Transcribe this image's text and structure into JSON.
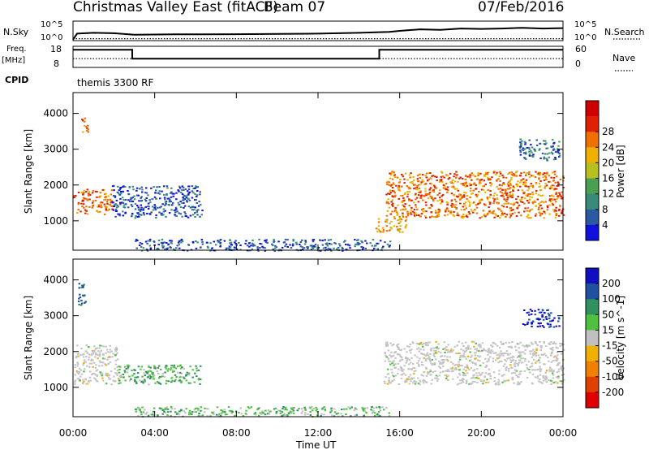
{
  "header": {
    "station": "Christmas Valley East (fitACF)",
    "beam": "Beam 07",
    "date": "07/Feb/2016"
  },
  "summary_labels": {
    "nsky": "N.Sky",
    "nsearch": "N.Search",
    "freq": "Freq.",
    "freq_unit": "[MHz]",
    "nave": "Nave",
    "cpid_label": "CPID",
    "cpid_value": "themis 3300 RF",
    "noise_ticks_left": [
      "10^5",
      "10^0"
    ],
    "noise_ticks_right": [
      "10^5",
      "10^0"
    ],
    "freq_ticks": [
      "18",
      "8"
    ],
    "nave_ticks": [
      "60",
      "0"
    ]
  },
  "colors": {
    "power": [
      "#1010e0",
      "#2a5aa0",
      "#3a8a7a",
      "#4aa050",
      "#b8c020",
      "#f0b000",
      "#f07000",
      "#e02000",
      "#d00000"
    ],
    "velocity": [
      "#1010c0",
      "#2050a0",
      "#309060",
      "#50c040",
      "#c0c0c0",
      "#f0b000",
      "#f08000",
      "#e04000",
      "#e00000"
    ],
    "velocity_ground": "#c4c4c4"
  },
  "chart_data": [
    {
      "type": "line",
      "panel": "noise",
      "x_range": [
        0,
        24
      ],
      "series": [
        {
          "name": "N.Sky",
          "x": [
            0,
            0.2,
            1,
            2,
            3,
            5,
            8,
            10,
            12,
            14,
            15.5,
            16,
            17,
            18,
            19,
            20,
            21,
            22,
            23,
            24
          ],
          "values": [
            0.05,
            0.36,
            0.4,
            0.38,
            0.3,
            0.32,
            0.33,
            0.34,
            0.36,
            0.4,
            0.45,
            0.5,
            0.58,
            0.55,
            0.62,
            0.6,
            0.62,
            0.66,
            0.62,
            0.64
          ]
        },
        {
          "name": "N.Search",
          "x": [
            0,
            24
          ],
          "values": [
            0.1,
            0.1
          ]
        }
      ]
    },
    {
      "type": "line",
      "panel": "frequency",
      "x_range": [
        0,
        24
      ],
      "series": [
        {
          "name": "Freq.",
          "x": [
            0,
            2.9,
            2.9,
            15.0,
            15.0,
            24
          ],
          "values": [
            16,
            16,
            11,
            11,
            16,
            16
          ]
        },
        {
          "name": "Nave",
          "x": [
            0,
            24
          ],
          "values": [
            25,
            25
          ]
        }
      ]
    },
    {
      "type": "heatmap",
      "title": "Power [dB]",
      "xlabel": "Time UT",
      "ylabel": "Slant Range [km]",
      "x_ticks": [
        "00:00",
        "04:00",
        "08:00",
        "12:00",
        "16:00",
        "20:00",
        "00:00"
      ],
      "x_range": [
        0,
        24
      ],
      "y_ticks": [
        1000,
        2000,
        3000,
        4000
      ],
      "y_range": [
        180,
        4580
      ],
      "colorbar_ticks": [
        4,
        8,
        12,
        16,
        20,
        24,
        28
      ],
      "colorbar_range": [
        0,
        32
      ],
      "echo_regions": [
        {
          "t": [
            0,
            1.9
          ],
          "r": [
            1200,
            1900
          ],
          "power": 27
        },
        {
          "t": [
            0.4,
            0.7
          ],
          "r": [
            3400,
            3900
          ],
          "power": 23
        },
        {
          "t": [
            1.9,
            6.3
          ],
          "r": [
            1100,
            2000
          ],
          "power": 6
        },
        {
          "t": [
            3,
            15.5
          ],
          "r": [
            180,
            500
          ],
          "power": 6
        },
        {
          "t": [
            14.8,
            16.3
          ],
          "r": [
            700,
            1100
          ],
          "power": 22
        },
        {
          "t": [
            15.3,
            24
          ],
          "r": [
            1100,
            2400
          ],
          "power": 26
        },
        {
          "t": [
            21.8,
            23.8
          ],
          "r": [
            2700,
            3300
          ],
          "power": 8
        }
      ]
    },
    {
      "type": "heatmap",
      "title": "Velocity [m s^-1]",
      "xlabel": "Time UT",
      "ylabel": "Slant Range [km]",
      "x_ticks": [
        "00:00",
        "04:00",
        "08:00",
        "12:00",
        "16:00",
        "20:00",
        "00:00"
      ],
      "x_range": [
        0,
        24
      ],
      "y_ticks": [
        1000,
        2000,
        3000,
        4000
      ],
      "y_range": [
        180,
        4580
      ],
      "colorbar_ticks": [
        200,
        100,
        50,
        15,
        -15,
        -50,
        -100,
        -200
      ],
      "colorbar_range": [
        -250,
        250
      ],
      "echo_regions": [
        {
          "t": [
            0,
            2.2
          ],
          "r": [
            1100,
            2200
          ],
          "velocity": 0
        },
        {
          "t": [
            0.2,
            0.6
          ],
          "r": [
            3300,
            3950
          ],
          "velocity": 120
        },
        {
          "t": [
            2.2,
            6.2
          ],
          "r": [
            1100,
            1650
          ],
          "velocity": 40
        },
        {
          "t": [
            3,
            15.5
          ],
          "r": [
            200,
            480
          ],
          "velocity": 30
        },
        {
          "t": [
            15.2,
            24
          ],
          "r": [
            1100,
            2300
          ],
          "velocity": 0
        },
        {
          "t": [
            22,
            23.8
          ],
          "r": [
            2700,
            3200
          ],
          "velocity": 200
        }
      ]
    }
  ]
}
